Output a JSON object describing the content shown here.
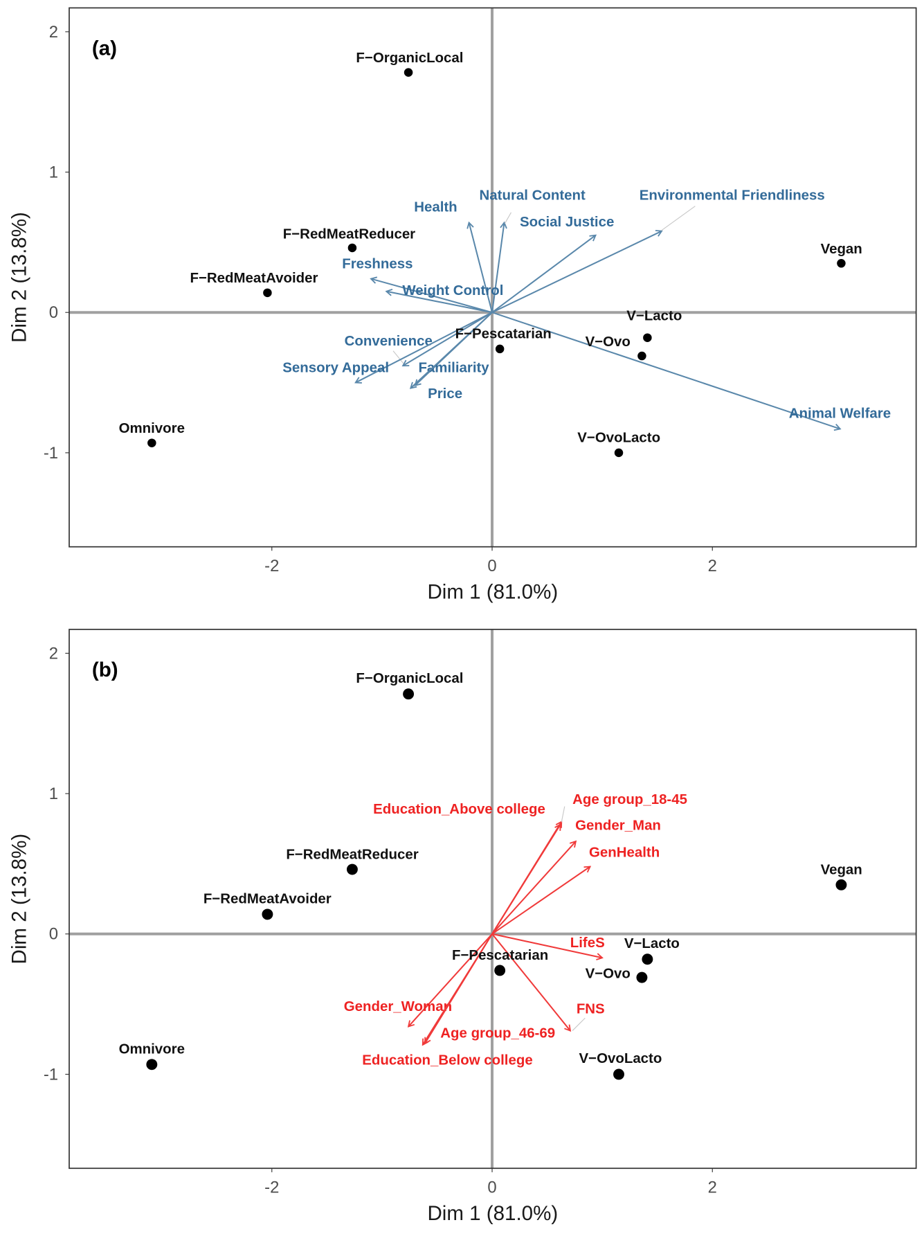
{
  "chart_data": [
    {
      "type": "scatter",
      "panel_label": "(a)",
      "xlabel": "Dim 1 (81.0%)",
      "ylabel": "Dim 2 (13.8%)",
      "xlim": [
        -3.84,
        3.85
      ],
      "ylim": [
        -1.67,
        2.17
      ],
      "xticks": [
        -2,
        0,
        2
      ],
      "yticks": [
        -1,
        0,
        1,
        2
      ],
      "grid": false,
      "point_color": "#000000",
      "vector_color": "#5a88ab",
      "label_color": "#336b99",
      "points": [
        {
          "label": "F−OrganicLocal",
          "x": -0.76,
          "y": 1.71
        },
        {
          "label": "F−RedMeatReducer",
          "x": -1.27,
          "y": 0.46
        },
        {
          "label": "F−RedMeatAvoider",
          "x": -2.04,
          "y": 0.14
        },
        {
          "label": "Omnivore",
          "x": -3.09,
          "y": -0.93
        },
        {
          "label": "F−Pescatarian",
          "x": 0.07,
          "y": -0.26
        },
        {
          "label": "V−Lacto",
          "x": 1.41,
          "y": -0.18
        },
        {
          "label": "V−Ovo",
          "x": 1.36,
          "y": -0.31
        },
        {
          "label": "V−OvoLacto",
          "x": 1.15,
          "y": -1.0
        },
        {
          "label": "Vegan",
          "x": 3.17,
          "y": 0.35
        }
      ],
      "vectors": [
        {
          "label": "Health",
          "x": -0.21,
          "y": 0.64
        },
        {
          "label": "Natural Content",
          "x": 0.11,
          "y": 0.64
        },
        {
          "label": "Social Justice",
          "x": 0.94,
          "y": 0.55
        },
        {
          "label": "Environmental Friendliness",
          "x": 1.54,
          "y": 0.58
        },
        {
          "label": "Freshness",
          "x": -1.1,
          "y": 0.24
        },
        {
          "label": "Weight Control",
          "x": -0.96,
          "y": 0.15
        },
        {
          "label": "Convenience",
          "x": -0.81,
          "y": -0.38
        },
        {
          "label": "Sensory Appeal",
          "x": -1.24,
          "y": -0.5
        },
        {
          "label": "Familiarity",
          "x": -0.7,
          "y": -0.52
        },
        {
          "label": "Price",
          "x": -0.74,
          "y": -0.54
        },
        {
          "label": "Animal Welfare",
          "x": 3.16,
          "y": -0.83
        }
      ]
    },
    {
      "type": "scatter",
      "panel_label": "(b)",
      "xlabel": "Dim 1 (81.0%)",
      "ylabel": "Dim 2 (13.8%)",
      "xlim": [
        -3.84,
        3.85
      ],
      "ylim": [
        -1.67,
        2.17
      ],
      "xticks": [
        -2,
        0,
        2
      ],
      "yticks": [
        -1,
        0,
        1,
        2
      ],
      "grid": false,
      "point_color": "#000000",
      "vector_color": "#f03a3a",
      "label_color": "#ee2222",
      "points": [
        {
          "label": "F−OrganicLocal",
          "x": -0.76,
          "y": 1.71
        },
        {
          "label": "F−RedMeatReducer",
          "x": -1.27,
          "y": 0.46
        },
        {
          "label": "F−RedMeatAvoider",
          "x": -2.04,
          "y": 0.14
        },
        {
          "label": "Omnivore",
          "x": -3.09,
          "y": -0.93
        },
        {
          "label": "F−Pescatarian",
          "x": 0.07,
          "y": -0.26
        },
        {
          "label": "V−Lacto",
          "x": 1.41,
          "y": -0.18
        },
        {
          "label": "V−Ovo",
          "x": 1.36,
          "y": -0.31
        },
        {
          "label": "V−OvoLacto",
          "x": 1.15,
          "y": -1.0
        },
        {
          "label": "Vegan",
          "x": 3.17,
          "y": 0.35
        }
      ],
      "vectors": [
        {
          "label": "Age group_18-45",
          "x": 0.63,
          "y": 0.8
        },
        {
          "label": "Education_Above college",
          "x": 0.62,
          "y": 0.78
        },
        {
          "label": "Gender_Man",
          "x": 0.76,
          "y": 0.66
        },
        {
          "label": "GenHealth",
          "x": 0.89,
          "y": 0.48
        },
        {
          "label": "LifeS",
          "x": 1.0,
          "y": -0.17
        },
        {
          "label": "FNS",
          "x": 0.71,
          "y": -0.69
        },
        {
          "label": "Gender_Woman",
          "x": -0.76,
          "y": -0.66
        },
        {
          "label": "Age group_46-69",
          "x": -0.61,
          "y": -0.78
        },
        {
          "label": "Education_Below college",
          "x": -0.63,
          "y": -0.79
        }
      ]
    }
  ]
}
